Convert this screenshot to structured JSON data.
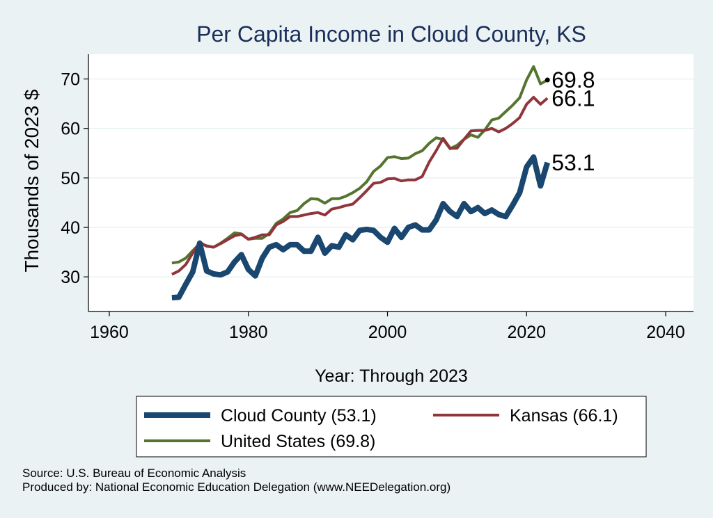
{
  "chart_data": {
    "type": "line",
    "title": "Per Capita Income in Cloud County, KS",
    "xlabel": "Year: Through 2023",
    "ylabel": "Thousands of 2023 $",
    "xlim": [
      1957,
      2044
    ],
    "ylim": [
      23,
      75
    ],
    "xticks": [
      1960,
      1980,
      2000,
      2020,
      2040
    ],
    "yticks": [
      30,
      40,
      50,
      60,
      70
    ],
    "grid": true,
    "x": [
      1969,
      1970,
      1971,
      1972,
      1973,
      1974,
      1975,
      1976,
      1977,
      1978,
      1979,
      1980,
      1981,
      1982,
      1983,
      1984,
      1985,
      1986,
      1987,
      1988,
      1989,
      1990,
      1991,
      1992,
      1993,
      1994,
      1995,
      1996,
      1997,
      1998,
      1999,
      2000,
      2001,
      2002,
      2003,
      2004,
      2005,
      2006,
      2007,
      2008,
      2009,
      2010,
      2011,
      2012,
      2013,
      2014,
      2015,
      2016,
      2017,
      2018,
      2019,
      2020,
      2021,
      2022,
      2023
    ],
    "series": [
      {
        "name": "Cloud County",
        "legend": "Cloud County (53.1)",
        "end_label": "53.1",
        "color": "#1a476f",
        "width": 8,
        "values": [
          25.8,
          25.9,
          28.5,
          31,
          36.8,
          31.2,
          30.6,
          30.4,
          31,
          33,
          34.5,
          31.5,
          30.2,
          33.8,
          36,
          36.5,
          35.5,
          36.5,
          36.5,
          35.2,
          35.2,
          38,
          34.8,
          36.3,
          36,
          38.5,
          37.5,
          39.4,
          39.6,
          39.4,
          38,
          37,
          39.8,
          38,
          40,
          40.5,
          39.5,
          39.5,
          41.5,
          44.8,
          43.2,
          42.2,
          44.8,
          43.2,
          44,
          42.8,
          43.5,
          42.6,
          42.2,
          44.5,
          47,
          52.2,
          54.2,
          48.4,
          53.1
        ]
      },
      {
        "name": "Kansas",
        "legend": "Kansas (66.1)",
        "end_label": "66.1",
        "color": "#90353b",
        "width": 4,
        "values": [
          30.5,
          31.2,
          32.5,
          34.8,
          37,
          36.2,
          36,
          36.7,
          37.5,
          38.3,
          38.6,
          37.6,
          38,
          38.5,
          38.5,
          40.5,
          41.2,
          42.2,
          42.2,
          42.5,
          42.8,
          43,
          42.5,
          43.7,
          44,
          44.4,
          44.7,
          46,
          47.4,
          48.9,
          49.1,
          49.8,
          49.9,
          49.4,
          49.6,
          49.6,
          50.3,
          53.2,
          55.5,
          58,
          56,
          56,
          57.8,
          59.5,
          59.6,
          59.6,
          60,
          59.3,
          60,
          61,
          62.2,
          64.9,
          66.3,
          64.9,
          66.1
        ]
      },
      {
        "name": "United States",
        "legend": "United States (69.8)",
        "end_label": "69.8",
        "color": "#55752f",
        "width": 4,
        "values": [
          32.8,
          33,
          33.8,
          35.3,
          36.7,
          36.3,
          36,
          36.8,
          37.8,
          38.9,
          38.7,
          37.6,
          37.8,
          37.8,
          38.8,
          40.8,
          41.7,
          43,
          43.4,
          44.8,
          45.8,
          45.7,
          44.9,
          45.8,
          45.8,
          46.3,
          47,
          47.9,
          49.2,
          51.3,
          52.4,
          54.1,
          54.3,
          53.9,
          54,
          54.9,
          55.5,
          57,
          58.1,
          57.8,
          55.9,
          56.6,
          57.8,
          58.7,
          58.2,
          59.7,
          61.7,
          62.1,
          63.4,
          64.7,
          66.2,
          69.8,
          72.5,
          69,
          69.8
        ]
      }
    ],
    "end_marker": "69.8",
    "legend_position": "bottom"
  },
  "source_line": "Source: U.S. Bureau of Economic Analysis",
  "produced_line": "Produced by: National Economic Education Delegation (www.NEEDelegation.org)"
}
